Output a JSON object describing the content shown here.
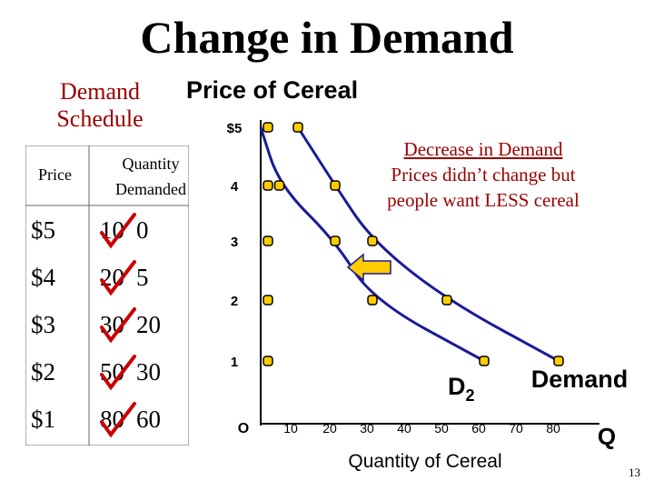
{
  "slide": {
    "title": "Change in Demand",
    "schedule_heading_line1": "Demand",
    "schedule_heading_line2": "Schedule",
    "page_number": "13"
  },
  "schedule": {
    "headers": {
      "price": "Price",
      "quantity_line1": "Quantity",
      "quantity_line2": "Demanded"
    },
    "rows": [
      {
        "price": "$5",
        "old": "10",
        "new": "0"
      },
      {
        "price": "$4",
        "old": "20",
        "new": "5"
      },
      {
        "price": "$3",
        "old": "30",
        "new": "20"
      },
      {
        "price": "$2",
        "old": "50",
        "new": "30"
      },
      {
        "price": "$1",
        "old": "80",
        "new": "60"
      }
    ]
  },
  "annotation": {
    "line1": "Decrease in Demand",
    "line2": "Prices didn’t change but",
    "line3": "people want LESS cereal"
  },
  "colors": {
    "curve": "#1a1a99",
    "point_fill": "#ffcc00",
    "annotation": "#990000",
    "arrow_fill": "#ffcc00",
    "check": "#cc0000"
  },
  "chart_data": {
    "type": "line",
    "title": "Price of Cereal",
    "xlabel": "Quantity of Cereal",
    "ylabel": "",
    "x_axis_end_label": "Q",
    "origin_label": "O",
    "x_ticks": [
      "10",
      "20",
      "30",
      "40",
      "50",
      "60",
      "70",
      "80"
    ],
    "y_ticks": [
      "$5",
      "4",
      "3",
      "2",
      "1"
    ],
    "xlim": [
      0,
      80
    ],
    "ylim": [
      0,
      5
    ],
    "series": [
      {
        "name": "Demand",
        "points": [
          [
            10,
            5
          ],
          [
            20,
            4
          ],
          [
            30,
            3
          ],
          [
            50,
            2
          ],
          [
            80,
            1
          ]
        ]
      },
      {
        "name": "D2",
        "points": [
          [
            0,
            5
          ],
          [
            5,
            4
          ],
          [
            20,
            3
          ],
          [
            30,
            2
          ],
          [
            60,
            1
          ]
        ]
      }
    ],
    "extra_points": [
      [
        0,
        4
      ],
      [
        0,
        3
      ],
      [
        0,
        2
      ],
      [
        0,
        1
      ]
    ],
    "shift_arrow": "left",
    "grid": false
  }
}
